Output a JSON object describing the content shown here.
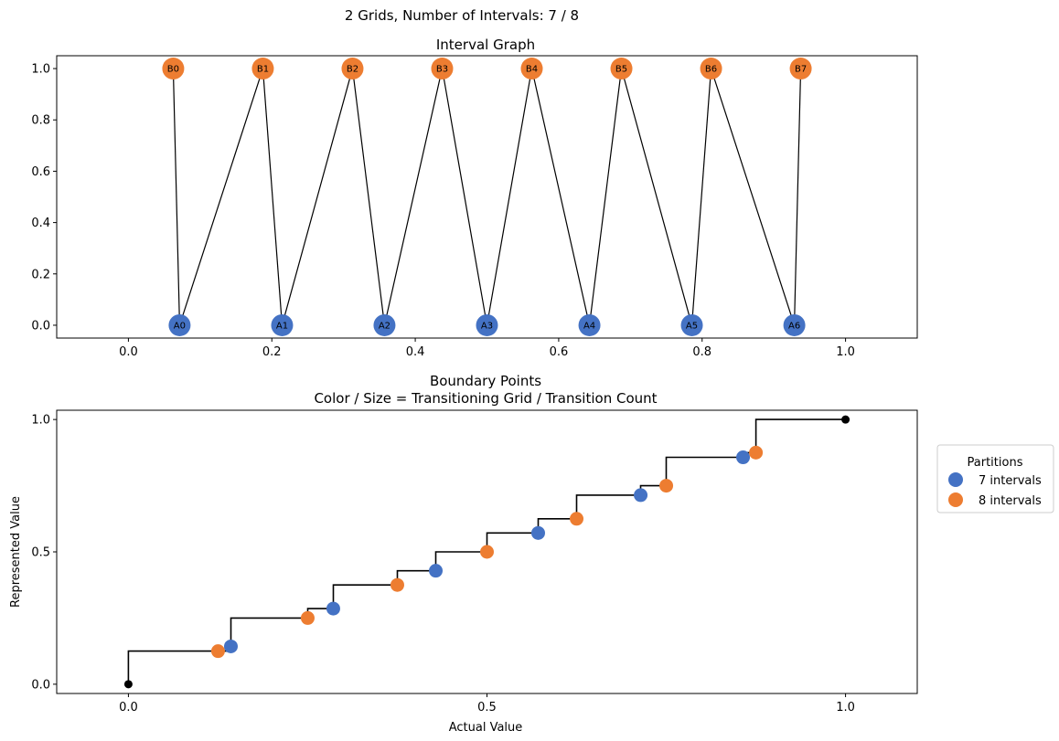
{
  "figure": {
    "suptitle": "2 Grids, Number of Intervals: 7 / 8"
  },
  "colors": {
    "grid_a": "#4472c4",
    "grid_b": "#ed7d31",
    "endpoint": "#000000",
    "edge": "#000000"
  },
  "chart_data": [
    {
      "type": "network",
      "title": "Interval Graph",
      "xlim": [
        -0.1,
        1.1
      ],
      "ylim": [
        -0.05,
        1.05
      ],
      "xticks": [
        0.0,
        0.2,
        0.4,
        0.6,
        0.8,
        1.0
      ],
      "xtick_labels": [
        "0.0",
        "0.2",
        "0.4",
        "0.6",
        "0.8",
        "1.0"
      ],
      "yticks": [
        0.0,
        0.2,
        0.4,
        0.6,
        0.8,
        1.0
      ],
      "ytick_labels": [
        "0.0",
        "0.2",
        "0.4",
        "0.6",
        "0.8",
        "1.0"
      ],
      "nodes": [
        {
          "label": "A0",
          "x": 0.0714,
          "y": 0,
          "grid": "a"
        },
        {
          "label": "A1",
          "x": 0.2143,
          "y": 0,
          "grid": "a"
        },
        {
          "label": "A2",
          "x": 0.3571,
          "y": 0,
          "grid": "a"
        },
        {
          "label": "A3",
          "x": 0.5,
          "y": 0,
          "grid": "a"
        },
        {
          "label": "A4",
          "x": 0.6429,
          "y": 0,
          "grid": "a"
        },
        {
          "label": "A5",
          "x": 0.7857,
          "y": 0,
          "grid": "a"
        },
        {
          "label": "A6",
          "x": 0.9286,
          "y": 0,
          "grid": "a"
        },
        {
          "label": "B0",
          "x": 0.0625,
          "y": 1,
          "grid": "b"
        },
        {
          "label": "B1",
          "x": 0.1875,
          "y": 1,
          "grid": "b"
        },
        {
          "label": "B2",
          "x": 0.3125,
          "y": 1,
          "grid": "b"
        },
        {
          "label": "B3",
          "x": 0.4375,
          "y": 1,
          "grid": "b"
        },
        {
          "label": "B4",
          "x": 0.5625,
          "y": 1,
          "grid": "b"
        },
        {
          "label": "B5",
          "x": 0.6875,
          "y": 1,
          "grid": "b"
        },
        {
          "label": "B6",
          "x": 0.8125,
          "y": 1,
          "grid": "b"
        },
        {
          "label": "B7",
          "x": 0.9375,
          "y": 1,
          "grid": "b"
        }
      ],
      "edges": [
        [
          "A0",
          "B0"
        ],
        [
          "A0",
          "B1"
        ],
        [
          "A1",
          "B1"
        ],
        [
          "A1",
          "B2"
        ],
        [
          "A2",
          "B2"
        ],
        [
          "A2",
          "B3"
        ],
        [
          "A3",
          "B3"
        ],
        [
          "A3",
          "B4"
        ],
        [
          "A4",
          "B4"
        ],
        [
          "A4",
          "B5"
        ],
        [
          "A5",
          "B5"
        ],
        [
          "A5",
          "B6"
        ],
        [
          "A6",
          "B6"
        ],
        [
          "A6",
          "B7"
        ]
      ]
    },
    {
      "type": "step-scatter",
      "title": "Boundary Points",
      "subtitle": "Color / Size = Transitioning Grid / Transition Count",
      "xlabel": "Actual Value",
      "ylabel": "Represented Value",
      "xlim": [
        -0.1,
        1.1
      ],
      "ylim": [
        -0.035,
        1.035
      ],
      "xticks": [
        0.0,
        0.5,
        1.0
      ],
      "xtick_labels": [
        "0.0",
        "0.5",
        "1.0"
      ],
      "yticks": [
        0.0,
        0.5,
        1.0
      ],
      "ytick_labels": [
        "0.0",
        "0.5",
        "1.0"
      ],
      "legend": {
        "title": "Partitions",
        "position": "right-outside",
        "entries": [
          {
            "label": "7 intervals",
            "grid": "a"
          },
          {
            "label": "8 intervals",
            "grid": "b"
          }
        ]
      },
      "step_points": [
        [
          0,
          0
        ],
        [
          0,
          0.125
        ],
        [
          0.1429,
          0.125
        ],
        [
          0.1429,
          0.25
        ],
        [
          0.25,
          0.25
        ],
        [
          0.25,
          0.2857
        ],
        [
          0.2857,
          0.2857
        ],
        [
          0.2857,
          0.375
        ],
        [
          0.375,
          0.375
        ],
        [
          0.375,
          0.4286
        ],
        [
          0.4286,
          0.4286
        ],
        [
          0.4286,
          0.5
        ],
        [
          0.5,
          0.5
        ],
        [
          0.5,
          0.5714
        ],
        [
          0.5714,
          0.5714
        ],
        [
          0.5714,
          0.625
        ],
        [
          0.625,
          0.625
        ],
        [
          0.625,
          0.7143
        ],
        [
          0.7143,
          0.7143
        ],
        [
          0.7143,
          0.75
        ],
        [
          0.75,
          0.75
        ],
        [
          0.75,
          0.8571
        ],
        [
          0.8571,
          0.8571
        ],
        [
          0.8571,
          0.875
        ],
        [
          0.875,
          0.875
        ],
        [
          0.875,
          1.0
        ],
        [
          1.0,
          1.0
        ]
      ],
      "points": [
        {
          "x": 0.0,
          "y": 0.0,
          "grid": "end"
        },
        {
          "x": 0.125,
          "y": 0.125,
          "grid": "b"
        },
        {
          "x": 0.1429,
          "y": 0.1429,
          "grid": "a"
        },
        {
          "x": 0.25,
          "y": 0.25,
          "grid": "b"
        },
        {
          "x": 0.2857,
          "y": 0.2857,
          "grid": "a"
        },
        {
          "x": 0.375,
          "y": 0.375,
          "grid": "b"
        },
        {
          "x": 0.4286,
          "y": 0.4286,
          "grid": "a"
        },
        {
          "x": 0.5,
          "y": 0.5,
          "grid": "b"
        },
        {
          "x": 0.5714,
          "y": 0.5714,
          "grid": "a"
        },
        {
          "x": 0.625,
          "y": 0.625,
          "grid": "b"
        },
        {
          "x": 0.7143,
          "y": 0.7143,
          "grid": "a"
        },
        {
          "x": 0.75,
          "y": 0.75,
          "grid": "b"
        },
        {
          "x": 0.8571,
          "y": 0.8571,
          "grid": "a"
        },
        {
          "x": 0.875,
          "y": 0.875,
          "grid": "b"
        },
        {
          "x": 1.0,
          "y": 1.0,
          "grid": "end"
        }
      ]
    }
  ]
}
